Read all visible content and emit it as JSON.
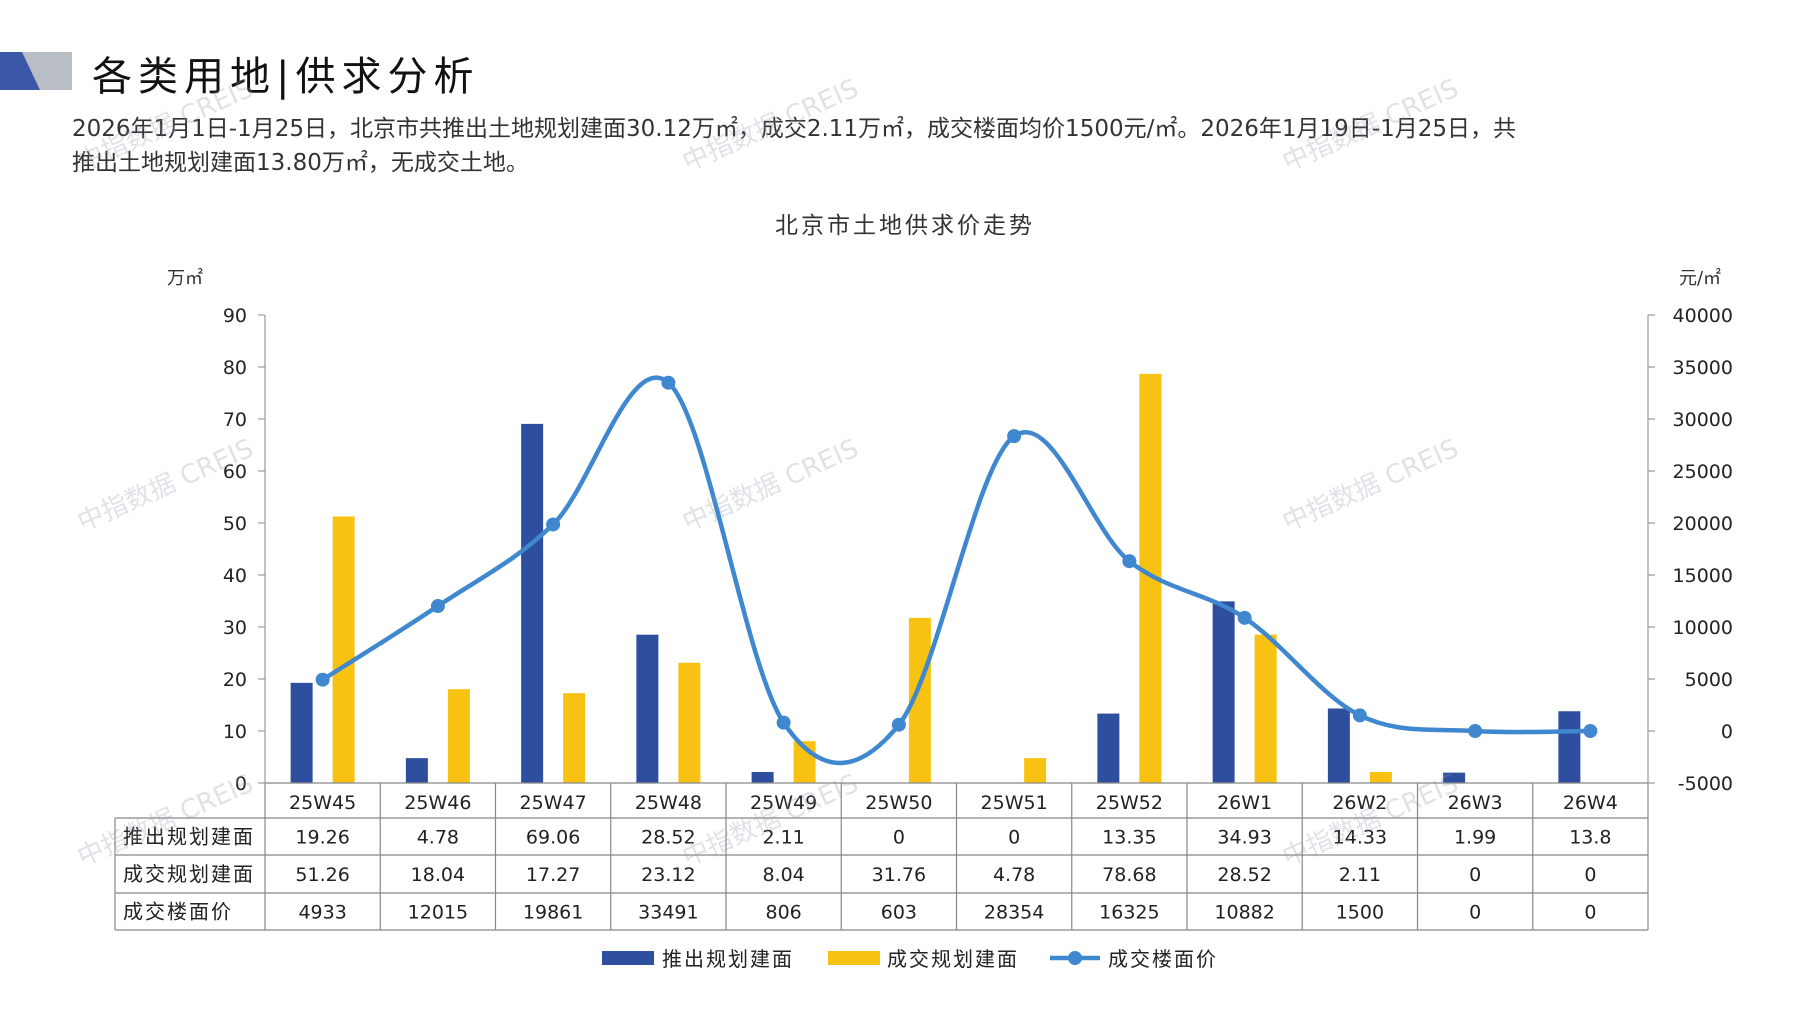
{
  "page": {
    "title": "各类用地|供求分析",
    "summary_line1": "2026年1月1日-1月25日，北京市共推出土地规划建面30.12万㎡，成交2.11万㎡，成交楼面均价1500元/㎡。2026年1月19日-1月25日，共",
    "summary_line2": "推出土地规划建面13.80万㎡，无成交土地。",
    "watermark": "中指数据 CREIS",
    "colors": {
      "logo_blue": "#3b57a8",
      "logo_gray": "#b9bdc6"
    }
  },
  "chart_data": {
    "type": "bar",
    "title": "北京市土地供求价走势",
    "ylabel_left": "万㎡",
    "ylabel_right": "元/㎡",
    "ylim_left": [
      0,
      90
    ],
    "yticks_left": [
      0,
      10,
      20,
      30,
      40,
      50,
      60,
      70,
      80,
      90
    ],
    "ylim_right": [
      -5000,
      40000
    ],
    "yticks_right": [
      -5000,
      0,
      5000,
      10000,
      15000,
      20000,
      25000,
      30000,
      35000,
      40000
    ],
    "categories": [
      "25W45",
      "25W46",
      "25W47",
      "25W48",
      "25W49",
      "25W50",
      "25W51",
      "25W52",
      "26W1",
      "26W2",
      "26W3",
      "26W4"
    ],
    "series": [
      {
        "name": "推出规划建面",
        "type": "bar",
        "axis": "left",
        "color": "#2e4f9e",
        "values": [
          19.26,
          4.78,
          69.06,
          28.52,
          2.11,
          0,
          0,
          13.35,
          34.93,
          14.33,
          1.99,
          13.8
        ],
        "labels": [
          "19.26",
          "4.78",
          "69.06",
          "28.52",
          "2.11",
          "0",
          "0",
          "13.35",
          "34.93",
          "14.33",
          "1.99",
          "13.8"
        ]
      },
      {
        "name": "成交规划建面",
        "type": "bar",
        "axis": "left",
        "color": "#f7c211",
        "values": [
          51.26,
          18.04,
          17.27,
          23.12,
          8.04,
          31.76,
          4.78,
          78.68,
          28.52,
          2.11,
          0,
          0
        ],
        "labels": [
          "51.26",
          "18.04",
          "17.27",
          "23.12",
          "8.04",
          "31.76",
          "4.78",
          "78.68",
          "28.52",
          "2.11",
          "0",
          "0"
        ]
      },
      {
        "name": "成交楼面价",
        "type": "line",
        "axis": "right",
        "color": "#3f88cf",
        "values": [
          4933,
          12015,
          19861,
          33491,
          806,
          603,
          28354,
          16325,
          10882,
          1500,
          0,
          0
        ],
        "labels": [
          "4933",
          "12015",
          "19861",
          "33491",
          "806",
          "603",
          "28354",
          "16325",
          "10882",
          "1500",
          "0",
          "0"
        ]
      }
    ],
    "legend_position": "bottom",
    "grid": false
  }
}
